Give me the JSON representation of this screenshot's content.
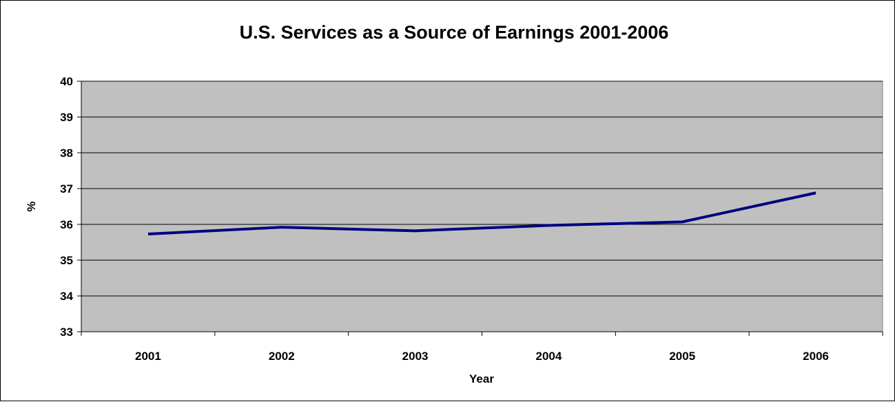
{
  "chart_data": {
    "type": "line",
    "title": "U.S. Services as a Source of Earnings 2001-2006",
    "xlabel": "Year",
    "ylabel": "%",
    "categories": [
      "2001",
      "2002",
      "2003",
      "2004",
      "2005",
      "2006"
    ],
    "series": [
      {
        "values": [
          35.73,
          35.92,
          35.82,
          35.97,
          36.07,
          36.88
        ],
        "color": "#000080"
      }
    ],
    "ylim": [
      33,
      40
    ],
    "yticks": [
      "33",
      "34",
      "35",
      "36",
      "37",
      "38",
      "39",
      "40"
    ],
    "grid": true,
    "plot_background": "#c0c0c0",
    "legend": "none"
  }
}
